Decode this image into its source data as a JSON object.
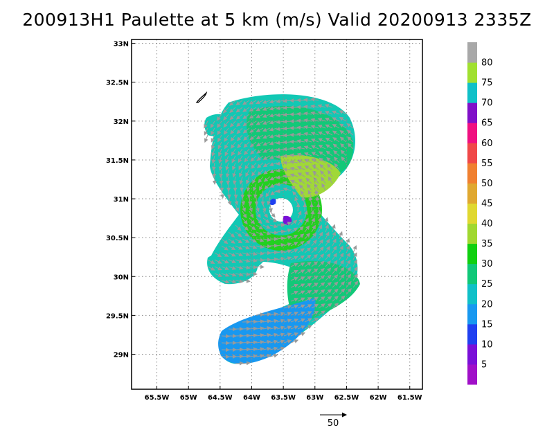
{
  "title": "200913H1 Paulette at 5 km (m/s) Valid 20200913 2335Z",
  "map": {
    "lon_ticks": [
      "65.5W",
      "65W",
      "64.5W",
      "64W",
      "63.5W",
      "63W",
      "62.5W",
      "62W",
      "61.5W"
    ],
    "lat_ticks": [
      "33N",
      "32.5N",
      "32N",
      "31.5N",
      "31N",
      "30.5N",
      "30N",
      "29.5N",
      "29N"
    ],
    "lon_range": [
      -65.9,
      -61.3
    ],
    "lat_range": [
      28.55,
      33.05
    ],
    "grid": "dotted",
    "storm_center": {
      "lon": -63.5,
      "lat": 30.88
    }
  },
  "colorbar": {
    "labels": [
      "5",
      "10",
      "15",
      "20",
      "25",
      "30",
      "35",
      "40",
      "45",
      "50",
      "55",
      "60",
      "65",
      "70",
      "75",
      "80"
    ],
    "colors": [
      "#a010c8",
      "#7a10d8",
      "#2040f0",
      "#1898f0",
      "#10c0c8",
      "#10c878",
      "#10d010",
      "#a0d830",
      "#e0d830",
      "#e0a830",
      "#f08030",
      "#f04848",
      "#f01080",
      "#8010c8",
      "#10c0c8",
      "#a0e030",
      "#a8a8a8"
    ]
  },
  "wind_legend": {
    "label": "50",
    "speed": 50
  }
}
